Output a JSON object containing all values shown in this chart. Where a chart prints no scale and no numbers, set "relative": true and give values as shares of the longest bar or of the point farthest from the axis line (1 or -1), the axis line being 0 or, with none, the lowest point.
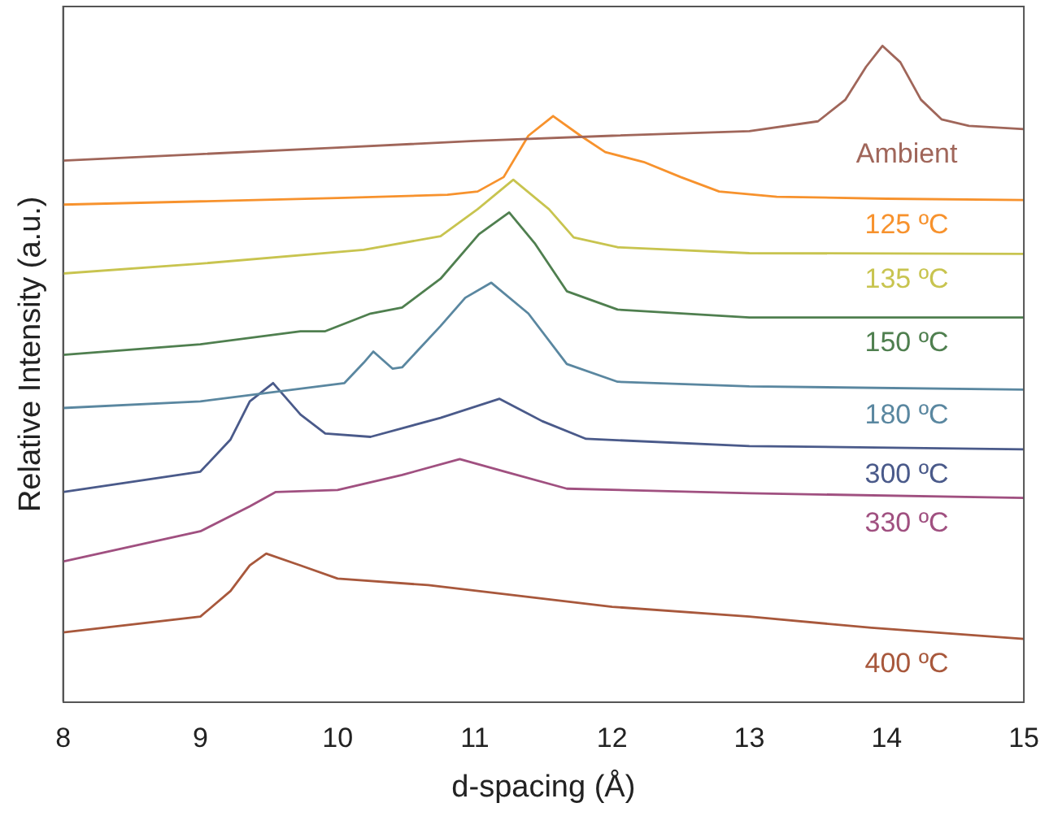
{
  "chart_data": {
    "type": "line",
    "relative": true,
    "xlabel": "d-spacing (Å)",
    "ylabel": "Relative Intensity (a.u.)",
    "xlim": [
      8,
      15
    ],
    "xticks": [
      8,
      9,
      10,
      11,
      12,
      13,
      14,
      15
    ],
    "grid": false,
    "legend": false,
    "marker": "none",
    "line_style": "solid",
    "series": [
      {
        "name": "Ambient",
        "color": "#a0665a",
        "x": [
          8,
          9,
          10,
          11,
          12,
          13,
          13.5,
          13.7,
          13.85,
          13.97,
          14.1,
          14.25,
          14.4,
          14.6,
          15
        ],
        "values": [
          0.825,
          0.835,
          0.845,
          0.855,
          0.863,
          0.87,
          0.885,
          0.918,
          0.968,
          1,
          0.975,
          0.918,
          0.888,
          0.878,
          0.873
        ]
      },
      {
        "name": "125 ºC",
        "color": "#f7922d",
        "x": [
          8,
          9,
          10,
          10.8,
          11.02,
          11.21,
          11.39,
          11.57,
          11.77,
          11.95,
          12.23,
          12.5,
          12.78,
          13.2,
          14,
          15
        ],
        "values": [
          0.758,
          0.763,
          0.768,
          0.773,
          0.778,
          0.8,
          0.863,
          0.893,
          0.863,
          0.838,
          0.823,
          0.8,
          0.778,
          0.77,
          0.767,
          0.765
        ]
      },
      {
        "name": "135 ºC",
        "color": "#c8c44f",
        "x": [
          8,
          9,
          10.19,
          10.75,
          11.02,
          11.28,
          11.54,
          11.72,
          12.04,
          13,
          15
        ],
        "values": [
          0.653,
          0.668,
          0.689,
          0.71,
          0.751,
          0.796,
          0.751,
          0.708,
          0.693,
          0.684,
          0.683
        ]
      },
      {
        "name": "150 ºC",
        "color": "#4f7f4f",
        "x": [
          8,
          9,
          9.73,
          9.91,
          10.24,
          10.47,
          10.75,
          11.03,
          11.25,
          11.44,
          11.67,
          12.04,
          13,
          15
        ],
        "values": [
          0.529,
          0.545,
          0.565,
          0.565,
          0.592,
          0.601,
          0.645,
          0.713,
          0.746,
          0.698,
          0.626,
          0.598,
          0.586,
          0.586
        ]
      },
      {
        "name": "180 ºC",
        "color": "#5a87a0",
        "x": [
          8,
          9,
          10.05,
          10.19,
          10.26,
          10.4,
          10.47,
          10.75,
          10.93,
          11.12,
          11.39,
          11.67,
          12.04,
          13,
          15
        ],
        "values": [
          0.448,
          0.458,
          0.486,
          0.517,
          0.534,
          0.508,
          0.51,
          0.573,
          0.616,
          0.639,
          0.592,
          0.515,
          0.488,
          0.481,
          0.476
        ]
      },
      {
        "name": "300 ºC",
        "color": "#4a5a8a",
        "x": [
          8,
          9,
          9.22,
          9.36,
          9.53,
          9.73,
          9.91,
          10.24,
          10.75,
          11.18,
          11.49,
          11.81,
          13,
          15
        ],
        "values": [
          0.32,
          0.351,
          0.4,
          0.458,
          0.486,
          0.438,
          0.409,
          0.404,
          0.433,
          0.462,
          0.428,
          0.401,
          0.39,
          0.385
        ]
      },
      {
        "name": "330 ºC",
        "color": "#a05080",
        "x": [
          8,
          9,
          9.36,
          9.55,
          10,
          10.47,
          10.89,
          11.22,
          11.67,
          13,
          15
        ],
        "values": [
          0.214,
          0.26,
          0.298,
          0.32,
          0.323,
          0.346,
          0.37,
          0.351,
          0.325,
          0.318,
          0.311
        ]
      },
      {
        "name": "400 ºC",
        "color": "#a8583c",
        "x": [
          8,
          9,
          9.22,
          9.36,
          9.48,
          9.73,
          10,
          10.66,
          12,
          13,
          13.89,
          15
        ],
        "values": [
          0.106,
          0.13,
          0.169,
          0.208,
          0.226,
          0.208,
          0.188,
          0.178,
          0.145,
          0.13,
          0.113,
          0.096
        ]
      }
    ]
  }
}
